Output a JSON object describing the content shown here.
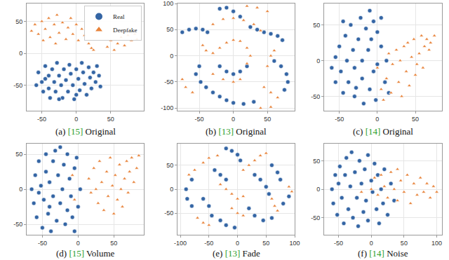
{
  "chart_data": [
    {
      "type": "scatter",
      "label": "(a)",
      "reference": "[15]",
      "caption": "Original",
      "legend": "upper right",
      "grid": true,
      "xlim": [
        -72,
        98
      ],
      "ylim": [
        -90,
        78
      ],
      "xticks": [
        -50,
        0,
        50
      ],
      "yticks": [
        -50,
        0,
        50
      ],
      "series": [
        {
          "name": "Real",
          "color": "#3465a4",
          "marker": "circle",
          "x": [
            -55,
            -50,
            -48,
            -45,
            -40,
            -40,
            -38,
            -35,
            -32,
            -30,
            -28,
            -25,
            -22,
            -20,
            -18,
            -15,
            -12,
            -10,
            -8,
            -5,
            -3,
            0,
            3,
            5,
            8,
            10,
            12,
            15,
            18,
            20,
            22,
            25,
            28,
            30,
            33,
            35,
            -45,
            -25,
            0,
            -58
          ],
          "y": [
            -30,
            -45,
            -60,
            -20,
            -35,
            -55,
            -70,
            -25,
            -45,
            -60,
            -15,
            -35,
            -50,
            -70,
            -25,
            -42,
            -60,
            -18,
            -32,
            -50,
            -72,
            -25,
            -40,
            -58,
            -15,
            -30,
            -48,
            -65,
            -22,
            -38,
            -55,
            -30,
            -45,
            -20,
            -35,
            -52,
            -40,
            -72,
            -65,
            -50
          ]
        },
        {
          "name": "Deepfake",
          "color": "#e8833a",
          "marker": "triangle",
          "x": [
            -65,
            -60,
            -55,
            -50,
            -45,
            -40,
            -38,
            -32,
            -28,
            -25,
            -20,
            -15,
            -12,
            -8,
            -5,
            0,
            3,
            8,
            12,
            18,
            22,
            25,
            -48,
            -30,
            45,
            50,
            55,
            60,
            65,
            70,
            75,
            80,
            85,
            88
          ],
          "y": [
            35,
            45,
            30,
            50,
            38,
            55,
            25,
            45,
            60,
            32,
            48,
            22,
            40,
            55,
            30,
            45,
            20,
            38,
            28,
            15,
            8,
            5,
            20,
            15,
            10,
            20,
            5,
            15,
            25,
            12,
            28,
            20,
            30,
            22
          ]
        }
      ]
    },
    {
      "type": "scatter",
      "label": "(b)",
      "reference": "[13]",
      "caption": "Original",
      "grid": true,
      "xlim": [
        -82,
        90
      ],
      "ylim": [
        -105,
        100
      ],
      "xticks": [
        -50,
        0,
        50
      ],
      "yticks": [
        -100,
        -50,
        0,
        50,
        100
      ],
      "series": [
        {
          "color": "#3465a4",
          "marker": "circle",
          "x": [
            -75,
            -65,
            -55,
            -45,
            -38,
            -20,
            -10,
            0,
            10,
            25,
            35,
            45,
            55,
            65,
            72,
            60,
            70,
            78,
            80,
            75,
            -40,
            -30,
            -20,
            -10,
            0,
            15,
            30,
            -50,
            -55,
            -48,
            -20,
            -10,
            0,
            10,
            20
          ],
          "y": [
            45,
            50,
            52,
            50,
            45,
            90,
            92,
            85,
            75,
            55,
            50,
            45,
            42,
            38,
            30,
            -10,
            -20,
            -35,
            -50,
            -65,
            -60,
            -70,
            -78,
            -85,
            -90,
            -92,
            -88,
            -20,
            -35,
            -50,
            -20,
            -30,
            -35,
            -30,
            -20
          ]
        },
        {
          "color": "#e8833a",
          "marker": "triangle",
          "x": [
            -30,
            -15,
            0,
            15,
            30,
            40,
            -45,
            -40,
            -30,
            -20,
            -10,
            0,
            10,
            20,
            25,
            20,
            10,
            0,
            -15,
            -30,
            45,
            55,
            65,
            40,
            55,
            20,
            35,
            50,
            -60,
            -70,
            -75,
            55,
            60,
            50
          ],
          "y": [
            60,
            70,
            72,
            68,
            60,
            48,
            20,
            10,
            5,
            15,
            25,
            30,
            28,
            15,
            0,
            -15,
            -45,
            -50,
            -45,
            -35,
            -60,
            -70,
            -80,
            -100,
            -98,
            95,
            92,
            85,
            -70,
            -60,
            -45,
            0,
            10,
            -20
          ]
        }
      ]
    },
    {
      "type": "scatter",
      "label": "(c)",
      "reference": "[14]",
      "caption": "Original",
      "grid": true,
      "xlim": [
        -70,
        85
      ],
      "ylim": [
        -70,
        80
      ],
      "xticks": [
        -50,
        0,
        50
      ],
      "yticks": [
        -50,
        0,
        50
      ],
      "series": [
        {
          "color": "#3465a4",
          "marker": "circle",
          "x": [
            -60,
            -55,
            -55,
            -50,
            -48,
            -45,
            -42,
            -40,
            -38,
            -35,
            -32,
            -30,
            -30,
            -25,
            -22,
            -20,
            -20,
            -18,
            -15,
            -12,
            -10,
            -10,
            -8,
            -5,
            -5,
            0,
            0,
            5,
            5,
            10,
            -2,
            12,
            15,
            -45,
            -28
          ],
          "y": [
            -10,
            5,
            -30,
            20,
            -15,
            -45,
            35,
            0,
            -30,
            50,
            15,
            -10,
            -50,
            30,
            60,
            0,
            -25,
            -60,
            45,
            15,
            70,
            -40,
            30,
            55,
            -15,
            40,
            -5,
            60,
            20,
            -30,
            -55,
            0,
            -45,
            55,
            -38
          ]
        },
        {
          "color": "#e8833a",
          "marker": "triangle",
          "x": [
            0,
            5,
            8,
            12,
            15,
            18,
            20,
            25,
            28,
            30,
            32,
            35,
            38,
            40,
            42,
            45,
            48,
            50,
            55,
            58,
            60,
            62,
            65,
            70,
            75,
            52,
            68
          ],
          "y": [
            -10,
            -40,
            -55,
            -25,
            10,
            -45,
            -5,
            15,
            -30,
            0,
            -50,
            20,
            -15,
            25,
            -35,
            5,
            30,
            -20,
            10,
            35,
            -10,
            20,
            30,
            25,
            35,
            -5,
            15
          ]
        }
      ]
    },
    {
      "type": "scatter",
      "label": "(d)",
      "reference": "[15]",
      "caption": "Volume",
      "grid": true,
      "xlim": [
        -72,
        92
      ],
      "ylim": [
        -65,
        65
      ],
      "xticks": [
        -50,
        0,
        50
      ],
      "yticks": [
        -50,
        0,
        50
      ],
      "series": [
        {
          "color": "#3465a4",
          "marker": "circle",
          "x": [
            -65,
            -62,
            -60,
            -58,
            -55,
            -52,
            -50,
            -48,
            -45,
            -45,
            -42,
            -40,
            -38,
            -35,
            -35,
            -32,
            -30,
            -28,
            -25,
            -25,
            -22,
            -20,
            -18,
            -15,
            -15,
            -12,
            -10,
            -8,
            -5,
            -5,
            0,
            -2,
            3,
            -55,
            -40
          ],
          "y": [
            0,
            -20,
            20,
            -40,
            40,
            5,
            -55,
            -15,
            25,
            50,
            -35,
            10,
            -60,
            -10,
            40,
            55,
            -45,
            20,
            -20,
            60,
            0,
            35,
            -50,
            -30,
            50,
            15,
            -10,
            -40,
            30,
            -60,
            -25,
            45,
            0,
            -5,
            -25
          ]
        },
        {
          "color": "#e8833a",
          "marker": "triangle",
          "x": [
            15,
            18,
            22,
            25,
            28,
            30,
            33,
            36,
            40,
            42,
            45,
            48,
            50,
            52,
            55,
            58,
            60,
            62,
            65,
            68,
            70,
            72,
            75,
            78,
            82,
            85,
            -8,
            -5
          ],
          "y": [
            15,
            -5,
            30,
            0,
            -20,
            40,
            10,
            -30,
            25,
            -10,
            45,
            5,
            -35,
            20,
            -15,
            35,
            0,
            -25,
            15,
            40,
            -5,
            25,
            45,
            10,
            30,
            48,
            20,
            -15
          ]
        }
      ]
    },
    {
      "type": "scatter",
      "label": "(e)",
      "reference": "[13]",
      "caption": "Fade",
      "grid": true,
      "xlim": [
        -105,
        100
      ],
      "ylim": [
        -95,
        95
      ],
      "xticks": [
        -100,
        -50,
        0,
        50,
        100
      ],
      "yticks": [
        -50,
        0,
        50
      ],
      "series": [
        {
          "color": "#3465a4",
          "marker": "circle",
          "x": [
            -20,
            -10,
            0,
            5,
            -80,
            -90,
            -88,
            -80,
            -60,
            -50,
            -45,
            -30,
            -20,
            -5,
            30,
            40,
            50,
            55,
            20,
            30,
            45,
            60,
            60,
            70,
            75,
            -40,
            -30,
            -20,
            80,
            90
          ],
          "y": [
            85,
            80,
            72,
            60,
            20,
            0,
            -20,
            -35,
            -20,
            -35,
            -55,
            -65,
            -75,
            -80,
            30,
            20,
            5,
            -10,
            -40,
            -55,
            -65,
            -60,
            50,
            35,
            20,
            40,
            30,
            20,
            -30,
            -15
          ]
        },
        {
          "color": "#e8833a",
          "marker": "triangle",
          "x": [
            -60,
            -50,
            -35,
            -70,
            -60,
            -50,
            -30,
            -20,
            -10,
            0,
            10,
            10,
            20,
            30,
            -10,
            0,
            10,
            60,
            65,
            70,
            40,
            50,
            90,
            95,
            -75,
            -85
          ],
          "y": [
            55,
            65,
            70,
            -60,
            -70,
            -75,
            10,
            0,
            -10,
            -20,
            -15,
            40,
            50,
            60,
            -40,
            -50,
            -55,
            -20,
            -35,
            -45,
            70,
            75,
            5,
            -5,
            40,
            30
          ]
        }
      ]
    },
    {
      "type": "scatter",
      "label": "(f)",
      "reference": "[14]",
      "caption": "Noise",
      "grid": true,
      "xlim": [
        -72,
        108
      ],
      "ylim": [
        -80,
        80
      ],
      "xticks": [
        -50,
        0,
        50,
        100
      ],
      "yticks": [
        -50,
        0,
        50
      ],
      "series": [
        {
          "color": "#3465a4",
          "marker": "circle",
          "x": [
            -60,
            -58,
            -55,
            -52,
            -50,
            -48,
            -45,
            -42,
            -40,
            -38,
            -35,
            -32,
            -30,
            -28,
            -25,
            -22,
            -20,
            -18,
            -15,
            -12,
            -10,
            -8,
            -5,
            -5,
            0,
            2,
            5,
            8,
            10,
            12,
            15,
            18,
            20,
            25,
            30,
            35
          ],
          "y": [
            0,
            -25,
            25,
            -45,
            10,
            40,
            -15,
            -60,
            25,
            55,
            -35,
            5,
            65,
            -50,
            30,
            -15,
            -65,
            50,
            10,
            -40,
            35,
            -20,
            60,
            -55,
            15,
            -5,
            45,
            -35,
            25,
            -60,
            0,
            -25,
            35,
            -45,
            10,
            -20
          ]
        },
        {
          "color": "#e8833a",
          "marker": "triangle",
          "x": [
            0,
            5,
            10,
            15,
            20,
            25,
            30,
            35,
            40,
            45,
            50,
            55,
            60,
            65,
            70,
            75,
            80,
            85,
            90,
            95,
            100,
            -15,
            40
          ],
          "y": [
            0,
            20,
            -10,
            25,
            5,
            -15,
            30,
            0,
            -20,
            15,
            -5,
            25,
            -25,
            10,
            -10,
            20,
            -5,
            10,
            -15,
            5,
            -5,
            -5,
            35
          ]
        }
      ]
    }
  ]
}
